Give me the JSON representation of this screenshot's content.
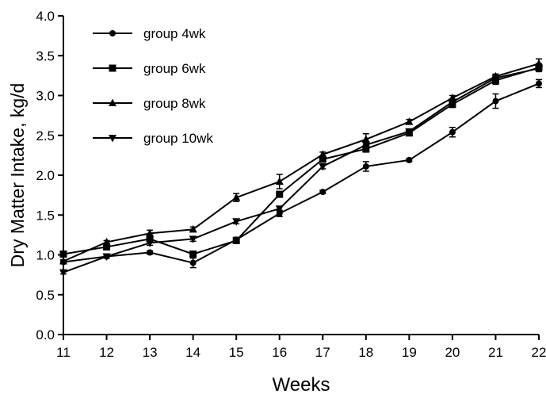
{
  "chart_data": {
    "type": "line",
    "title": "",
    "xlabel": "Weeks",
    "ylabel": "Dry Matter Intake, kg/d",
    "x": [
      11,
      12,
      13,
      14,
      15,
      16,
      17,
      18,
      19,
      20,
      21,
      22
    ],
    "xlim": [
      11,
      22
    ],
    "ylim": [
      0.0,
      4.0
    ],
    "xticks": [
      "11",
      "12",
      "13",
      "14",
      "15",
      "16",
      "17",
      "18",
      "19",
      "20",
      "21",
      "22"
    ],
    "yticks": [
      "0.0",
      "0.5",
      "1.0",
      "1.5",
      "2.0",
      "2.5",
      "3.0",
      "3.5",
      "4.0"
    ],
    "grid": false,
    "legend_position": "top-left",
    "series": [
      {
        "name": "group 4wk",
        "marker": "circle",
        "values": [
          0.91,
          0.98,
          1.03,
          0.9,
          1.19,
          1.52,
          1.79,
          2.11,
          2.19,
          2.54,
          2.93,
          3.15
        ],
        "errors": [
          0.02,
          0.02,
          0.02,
          0.06,
          0.03,
          0.04,
          0.02,
          0.06,
          0.02,
          0.06,
          0.09,
          0.05
        ]
      },
      {
        "name": "group 6wk",
        "marker": "square",
        "values": [
          1.01,
          1.1,
          1.2,
          1.01,
          1.18,
          1.76,
          2.2,
          2.33,
          2.53,
          2.89,
          3.19,
          3.35
        ],
        "errors": [
          0.02,
          0.02,
          0.03,
          0.03,
          0.03,
          0.03,
          0.03,
          0.04,
          0.03,
          0.04,
          0.05,
          0.05
        ]
      },
      {
        "name": "group 8wk",
        "marker": "triangle-up",
        "values": [
          0.92,
          1.16,
          1.27,
          1.32,
          1.72,
          1.92,
          2.26,
          2.45,
          2.67,
          2.97,
          3.24,
          3.4
        ],
        "errors": [
          0.02,
          0.02,
          0.04,
          0.03,
          0.05,
          0.09,
          0.03,
          0.07,
          0.03,
          0.03,
          0.03,
          0.06
        ]
      },
      {
        "name": "group 10wk",
        "marker": "triangle-down",
        "values": [
          0.78,
          0.98,
          1.15,
          1.2,
          1.42,
          1.58,
          2.11,
          2.38,
          2.55,
          2.92,
          3.22,
          3.34
        ],
        "errors": [
          0.02,
          0.02,
          0.03,
          0.03,
          0.03,
          0.03,
          0.03,
          0.03,
          0.03,
          0.03,
          0.03,
          0.03
        ]
      }
    ]
  }
}
